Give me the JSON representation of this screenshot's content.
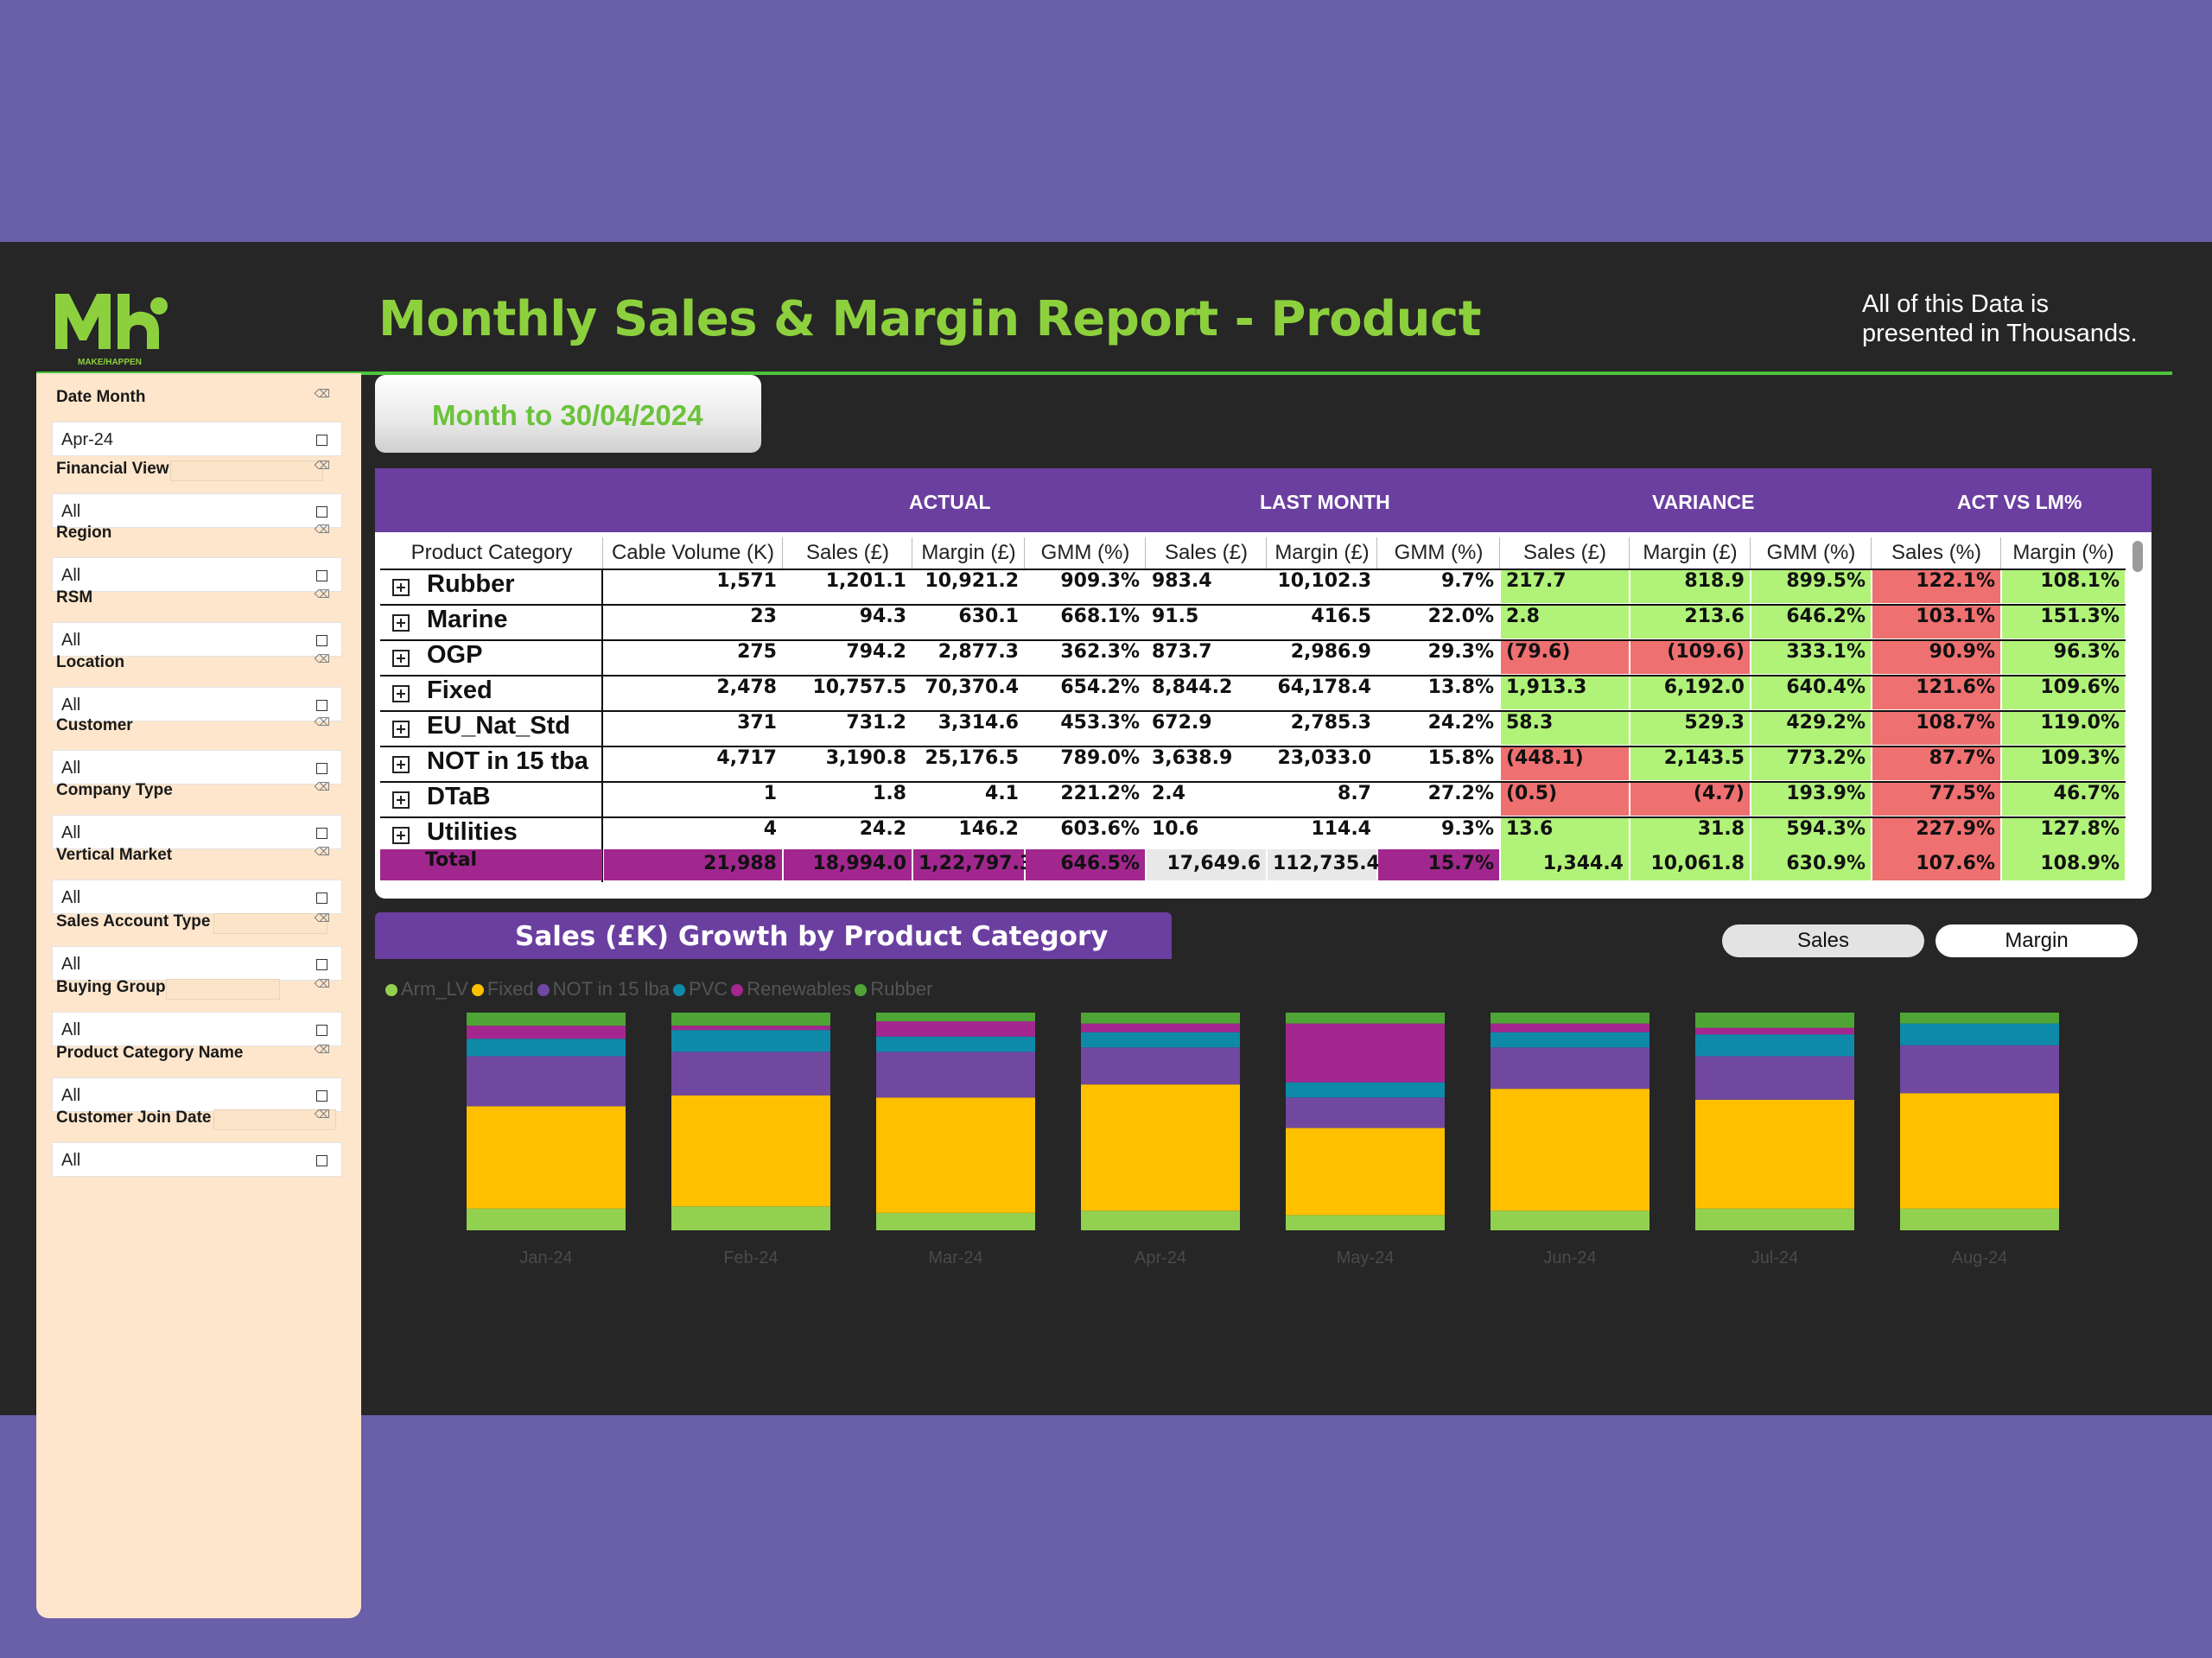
{
  "header": {
    "logo_text": "Mh",
    "logo_tagline": "MAKE/HAPPEN",
    "title": "Monthly Sales & Margin Report - Product",
    "note_line1": "All of this Data is",
    "note_line2": "presented in Thousands."
  },
  "colors": {
    "brand_green": "#8dd03e",
    "purple": "#6b3fa0",
    "background": "#262626",
    "positive": "#b1f279",
    "negative": "#ef7070",
    "magenta": "#a1278f"
  },
  "slicers": [
    {
      "label": "Date Month",
      "value": "Apr-24"
    },
    {
      "label": "Financial View",
      "value": "All"
    },
    {
      "label": "Region",
      "value": "All"
    },
    {
      "label": "RSM",
      "value": "All"
    },
    {
      "label": "Location",
      "value": "All"
    },
    {
      "label": "Customer",
      "value": "All"
    },
    {
      "label": "Company Type",
      "value": "All"
    },
    {
      "label": "Vertical Market",
      "value": "All"
    },
    {
      "label": "Sales Account Type",
      "value": "All"
    },
    {
      "label": "Buying Group",
      "value": "All"
    },
    {
      "label": "Product Category Name",
      "value": "All"
    },
    {
      "label": "Customer Join Date",
      "value": "All"
    }
  ],
  "month_button": "Month to 30/04/2024",
  "matrix": {
    "groups": [
      "ACTUAL",
      "LAST MONTH",
      "VARIANCE",
      "ACT VS LM%"
    ],
    "columns": [
      "Product Category",
      "Cable Volume (K)",
      "Sales (£)",
      "Margin (£)",
      "GMM (%)",
      "Sales (£)",
      "Margin (£)",
      "GMM (%)",
      "Sales (£)",
      "Margin (£)",
      "GMM (%)",
      "Sales (%)",
      "Margin (%)"
    ],
    "rows": [
      {
        "cells": [
          "Rubber",
          "1,571",
          "1,201.1",
          "10,921.2",
          "909.3%",
          "983.4",
          "10,102.3",
          "9.7%",
          "217.7",
          "818.9",
          "899.5%",
          "122.1%",
          "108.1%"
        ],
        "var": [
          "g",
          "g",
          "g",
          "rd",
          "g"
        ]
      },
      {
        "cells": [
          "Marine",
          "23",
          "94.3",
          "630.1",
          "668.1%",
          "91.5",
          "416.5",
          "22.0%",
          "2.8",
          "213.6",
          "646.2%",
          "103.1%",
          "151.3%"
        ],
        "var": [
          "g",
          "g",
          "g",
          "rd",
          "g"
        ]
      },
      {
        "cells": [
          "OGP",
          "275",
          "794.2",
          "2,877.3",
          "362.3%",
          "873.7",
          "2,986.9",
          "29.3%",
          "(79.6)",
          "(109.6)",
          "333.1%",
          "90.9%",
          "96.3%"
        ],
        "var": [
          "rd",
          "rd",
          "g",
          "rd",
          "g"
        ]
      },
      {
        "cells": [
          "Fixed",
          "2,478",
          "10,757.5",
          "70,370.4",
          "654.2%",
          "8,844.2",
          "64,178.4",
          "13.8%",
          "1,913.3",
          "6,192.0",
          "640.4%",
          "121.6%",
          "109.6%"
        ],
        "var": [
          "g",
          "g",
          "g",
          "rd",
          "g"
        ]
      },
      {
        "cells": [
          "EU_Nat_Std",
          "371",
          "731.2",
          "3,314.6",
          "453.3%",
          "672.9",
          "2,785.3",
          "24.2%",
          "58.3",
          "529.3",
          "429.2%",
          "108.7%",
          "119.0%"
        ],
        "var": [
          "g",
          "g",
          "g",
          "rd",
          "g"
        ]
      },
      {
        "cells": [
          "NOT in 15 tba",
          "4,717",
          "3,190.8",
          "25,176.5",
          "789.0%",
          "3,638.9",
          "23,033.0",
          "15.8%",
          "(448.1)",
          "2,143.5",
          "773.2%",
          "87.7%",
          "109.3%"
        ],
        "var": [
          "rd",
          "g",
          "g",
          "rd",
          "g"
        ]
      },
      {
        "cells": [
          "DTaB",
          "1",
          "1.8",
          "4.1",
          "221.2%",
          "2.4",
          "8.7",
          "27.2%",
          "(0.5)",
          "(4.7)",
          "193.9%",
          "77.5%",
          "46.7%"
        ],
        "var": [
          "rd",
          "rd",
          "g",
          "rd",
          "g"
        ]
      },
      {
        "cells": [
          "Utilities",
          "4",
          "24.2",
          "146.2",
          "603.6%",
          "10.6",
          "114.4",
          "9.3%",
          "13.6",
          "31.8",
          "594.3%",
          "227.9%",
          "127.8%"
        ],
        "var": [
          "g",
          "g",
          "g",
          "rd",
          "g"
        ]
      }
    ],
    "total": [
      "Total",
      "21,988",
      "18,994.0",
      "1,22,797.3",
      "646.5%",
      "17,649.6",
      "112,735.4",
      "15.7%",
      "1,344.4",
      "10,061.8",
      "630.9%",
      "107.6%",
      "108.9%"
    ]
  },
  "chart_header": "Sales (£K) Growth by Product Category",
  "toggles": {
    "sales": "Sales",
    "margin": "Margin"
  },
  "chart_data": {
    "type": "bar",
    "stacked": true,
    "normalized": true,
    "categories": [
      "Jan-24",
      "Feb-24",
      "Mar-24",
      "Apr-24",
      "May-24",
      "Jun-24",
      "Jul-24",
      "Aug-24"
    ],
    "series": [
      {
        "name": "Arm_LV",
        "color": "#92d050",
        "values": [
          10,
          11,
          8,
          9,
          7,
          9,
          10,
          10
        ]
      },
      {
        "name": "Fixed",
        "color": "#ffc000",
        "values": [
          47,
          51,
          53,
          58,
          40,
          56,
          50,
          53
        ]
      },
      {
        "name": "NOT in 15 lba",
        "color": "#7048a0",
        "values": [
          23,
          20,
          21,
          17,
          14,
          19,
          20,
          22
        ]
      },
      {
        "name": "PVC",
        "color": "#0e8aa8",
        "values": [
          8,
          10,
          7,
          7,
          7,
          7,
          10,
          10
        ]
      },
      {
        "name": "Renewables",
        "color": "#a3278f",
        "values": [
          6,
          2,
          7,
          4,
          27,
          4,
          3,
          0
        ]
      },
      {
        "name": "Rubber",
        "color": "#4ea535",
        "values": [
          6,
          6,
          4,
          5,
          5,
          5,
          7,
          5
        ]
      }
    ],
    "ylim": [
      0,
      100
    ]
  }
}
